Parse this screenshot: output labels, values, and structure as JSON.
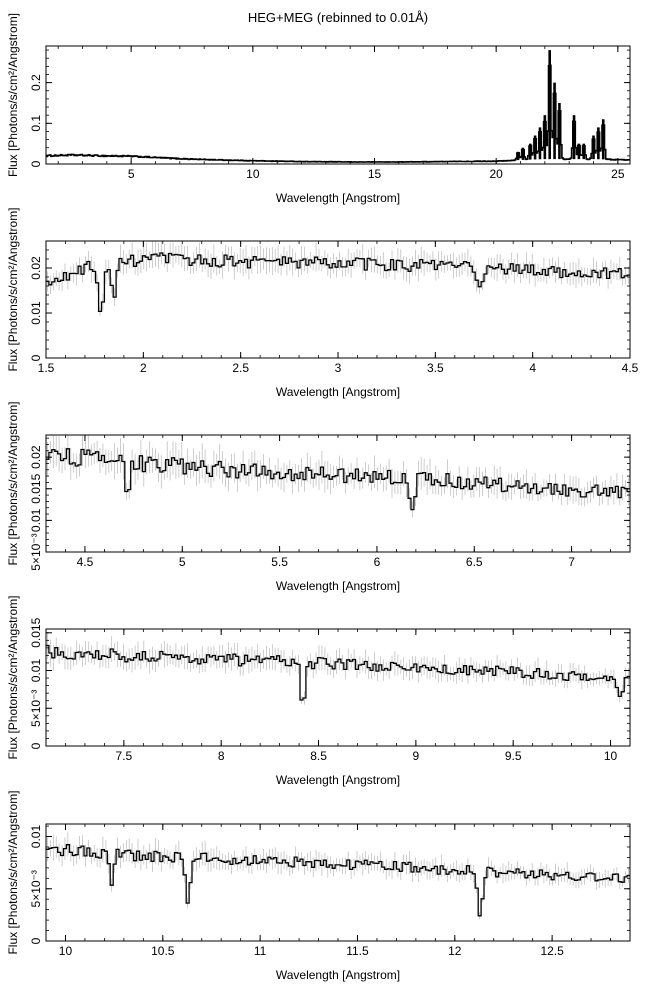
{
  "page": {
    "title": "HEG+MEG (rebinned to 0.01Å)"
  },
  "chart_data": [
    {
      "type": "line",
      "xlabel": "Wavelength [Angstrom]",
      "ylabel": "Flux [Photons/s/cm²/Angstrom]",
      "xlim": [
        1.5,
        25.5
      ],
      "ylim": [
        0,
        0.29
      ],
      "xticks": [
        5,
        10,
        15,
        20,
        25
      ],
      "yticks": [
        {
          "v": 0,
          "label": "0"
        },
        {
          "v": 0.1,
          "label": "0.1"
        },
        {
          "v": 0.2,
          "label": "0.2"
        }
      ],
      "continuum": [
        [
          1.5,
          0.02
        ],
        [
          2.5,
          0.022
        ],
        [
          4,
          0.02
        ],
        [
          5,
          0.019
        ],
        [
          6,
          0.016
        ],
        [
          7,
          0.013
        ],
        [
          8,
          0.011
        ],
        [
          10,
          0.008
        ],
        [
          12,
          0.006
        ],
        [
          14,
          0.005
        ],
        [
          16,
          0.005
        ],
        [
          18,
          0.006
        ],
        [
          20,
          0.007
        ],
        [
          20.5,
          0.008
        ],
        [
          21,
          0.01
        ],
        [
          22,
          0.012
        ],
        [
          23,
          0.012
        ],
        [
          24,
          0.012
        ],
        [
          25.5,
          0.01
        ]
      ],
      "lines": [
        [
          20.9,
          0.03
        ],
        [
          21.1,
          0.04
        ],
        [
          21.4,
          0.05
        ],
        [
          21.6,
          0.07
        ],
        [
          21.8,
          0.09
        ],
        [
          22.0,
          0.12
        ],
        [
          22.2,
          0.28
        ],
        [
          22.4,
          0.2
        ],
        [
          22.6,
          0.15
        ],
        [
          23.2,
          0.12
        ],
        [
          23.4,
          0.05
        ],
        [
          23.6,
          0.05
        ],
        [
          24.0,
          0.07
        ],
        [
          24.2,
          0.09
        ],
        [
          24.4,
          0.11
        ]
      ]
    },
    {
      "type": "line",
      "xlabel": "Wavelength [Angstrom]",
      "ylabel": "Flux [Photons/s/cm²/Angstrom]",
      "xlim": [
        1.5,
        4.5
      ],
      "ylim": [
        0,
        0.026
      ],
      "xticks": [
        1.5,
        2,
        2.5,
        3,
        3.5,
        4,
        4.5
      ],
      "yticks": [
        {
          "v": 0,
          "label": "0"
        },
        {
          "v": 0.01,
          "label": "0.01"
        },
        {
          "v": 0.02,
          "label": "0.02"
        }
      ],
      "continuum": [
        [
          1.5,
          0.016
        ],
        [
          1.6,
          0.018
        ],
        [
          1.7,
          0.02
        ],
        [
          1.9,
          0.021
        ],
        [
          2.0,
          0.022
        ],
        [
          2.5,
          0.0215
        ],
        [
          3.0,
          0.021
        ],
        [
          3.5,
          0.0205
        ],
        [
          4.0,
          0.0195
        ],
        [
          4.5,
          0.0185
        ]
      ],
      "lines": [
        [
          1.78,
          0.009
        ],
        [
          1.85,
          0.013
        ],
        [
          3.73,
          0.015
        ]
      ]
    },
    {
      "type": "line",
      "xlabel": "Wavelength [Angstrom]",
      "ylabel": "Flux [Photons/s/cm²/Angstrom]",
      "xlim": [
        4.3,
        7.3
      ],
      "ylim": [
        0.005,
        0.0235
      ],
      "xticks": [
        4.5,
        5,
        5.5,
        6,
        6.5,
        7
      ],
      "yticks": [
        {
          "v": 0.005,
          "label": "5×10⁻³"
        },
        {
          "v": 0.01,
          "label": "0.01"
        },
        {
          "v": 0.015,
          "label": "0.015"
        },
        {
          "v": 0.02,
          "label": "0.02"
        }
      ],
      "continuum": [
        [
          4.3,
          0.0205
        ],
        [
          4.6,
          0.0195
        ],
        [
          5.0,
          0.0185
        ],
        [
          5.5,
          0.0175
        ],
        [
          6.0,
          0.017
        ],
        [
          6.5,
          0.016
        ],
        [
          7.0,
          0.0148
        ],
        [
          7.3,
          0.0143
        ]
      ],
      "lines": [
        [
          4.72,
          0.0133
        ],
        [
          6.18,
          0.0107
        ]
      ]
    },
    {
      "type": "line",
      "xlabel": "Wavelength [Angstrom]",
      "ylabel": "Flux [Photons/s/cm²/Angstrom]",
      "xlim": [
        7.1,
        10.1
      ],
      "ylim": [
        0,
        0.0155
      ],
      "xticks": [
        7.5,
        8,
        8.5,
        9,
        9.5,
        10
      ],
      "yticks": [
        {
          "v": 0,
          "label": "0"
        },
        {
          "v": 0.005,
          "label": "5×10⁻³"
        },
        {
          "v": 0.01,
          "label": "0.01"
        },
        {
          "v": 0.015,
          "label": "0.015"
        }
      ],
      "continuum": [
        [
          7.1,
          0.0125
        ],
        [
          7.5,
          0.012
        ],
        [
          8.0,
          0.0115
        ],
        [
          8.5,
          0.011
        ],
        [
          9.0,
          0.0103
        ],
        [
          9.5,
          0.0098
        ],
        [
          10.0,
          0.009
        ],
        [
          10.1,
          0.0088
        ]
      ],
      "lines": [
        [
          8.42,
          0.0055
        ],
        [
          10.05,
          0.007
        ]
      ]
    },
    {
      "type": "line",
      "xlabel": "Wavelength [Angstrom]",
      "ylabel": "Flux [Photons/s/cm²/Angstrom]",
      "xlim": [
        9.9,
        12.9
      ],
      "ylim": [
        0,
        0.0112
      ],
      "xticks": [
        10,
        10.5,
        11,
        11.5,
        12,
        12.5
      ],
      "yticks": [
        {
          "v": 0,
          "label": "0"
        },
        {
          "v": 0.005,
          "label": "5×10⁻³"
        },
        {
          "v": 0.01,
          "label": "0.01"
        }
      ],
      "continuum": [
        [
          9.9,
          0.0088
        ],
        [
          10.2,
          0.0085
        ],
        [
          10.5,
          0.008
        ],
        [
          11.0,
          0.0077
        ],
        [
          11.5,
          0.0073
        ],
        [
          12.0,
          0.0068
        ],
        [
          12.5,
          0.0063
        ],
        [
          12.9,
          0.006
        ]
      ],
      "lines": [
        [
          10.24,
          0.0058
        ],
        [
          10.63,
          0.004
        ],
        [
          12.13,
          0.0022
        ]
      ]
    }
  ]
}
